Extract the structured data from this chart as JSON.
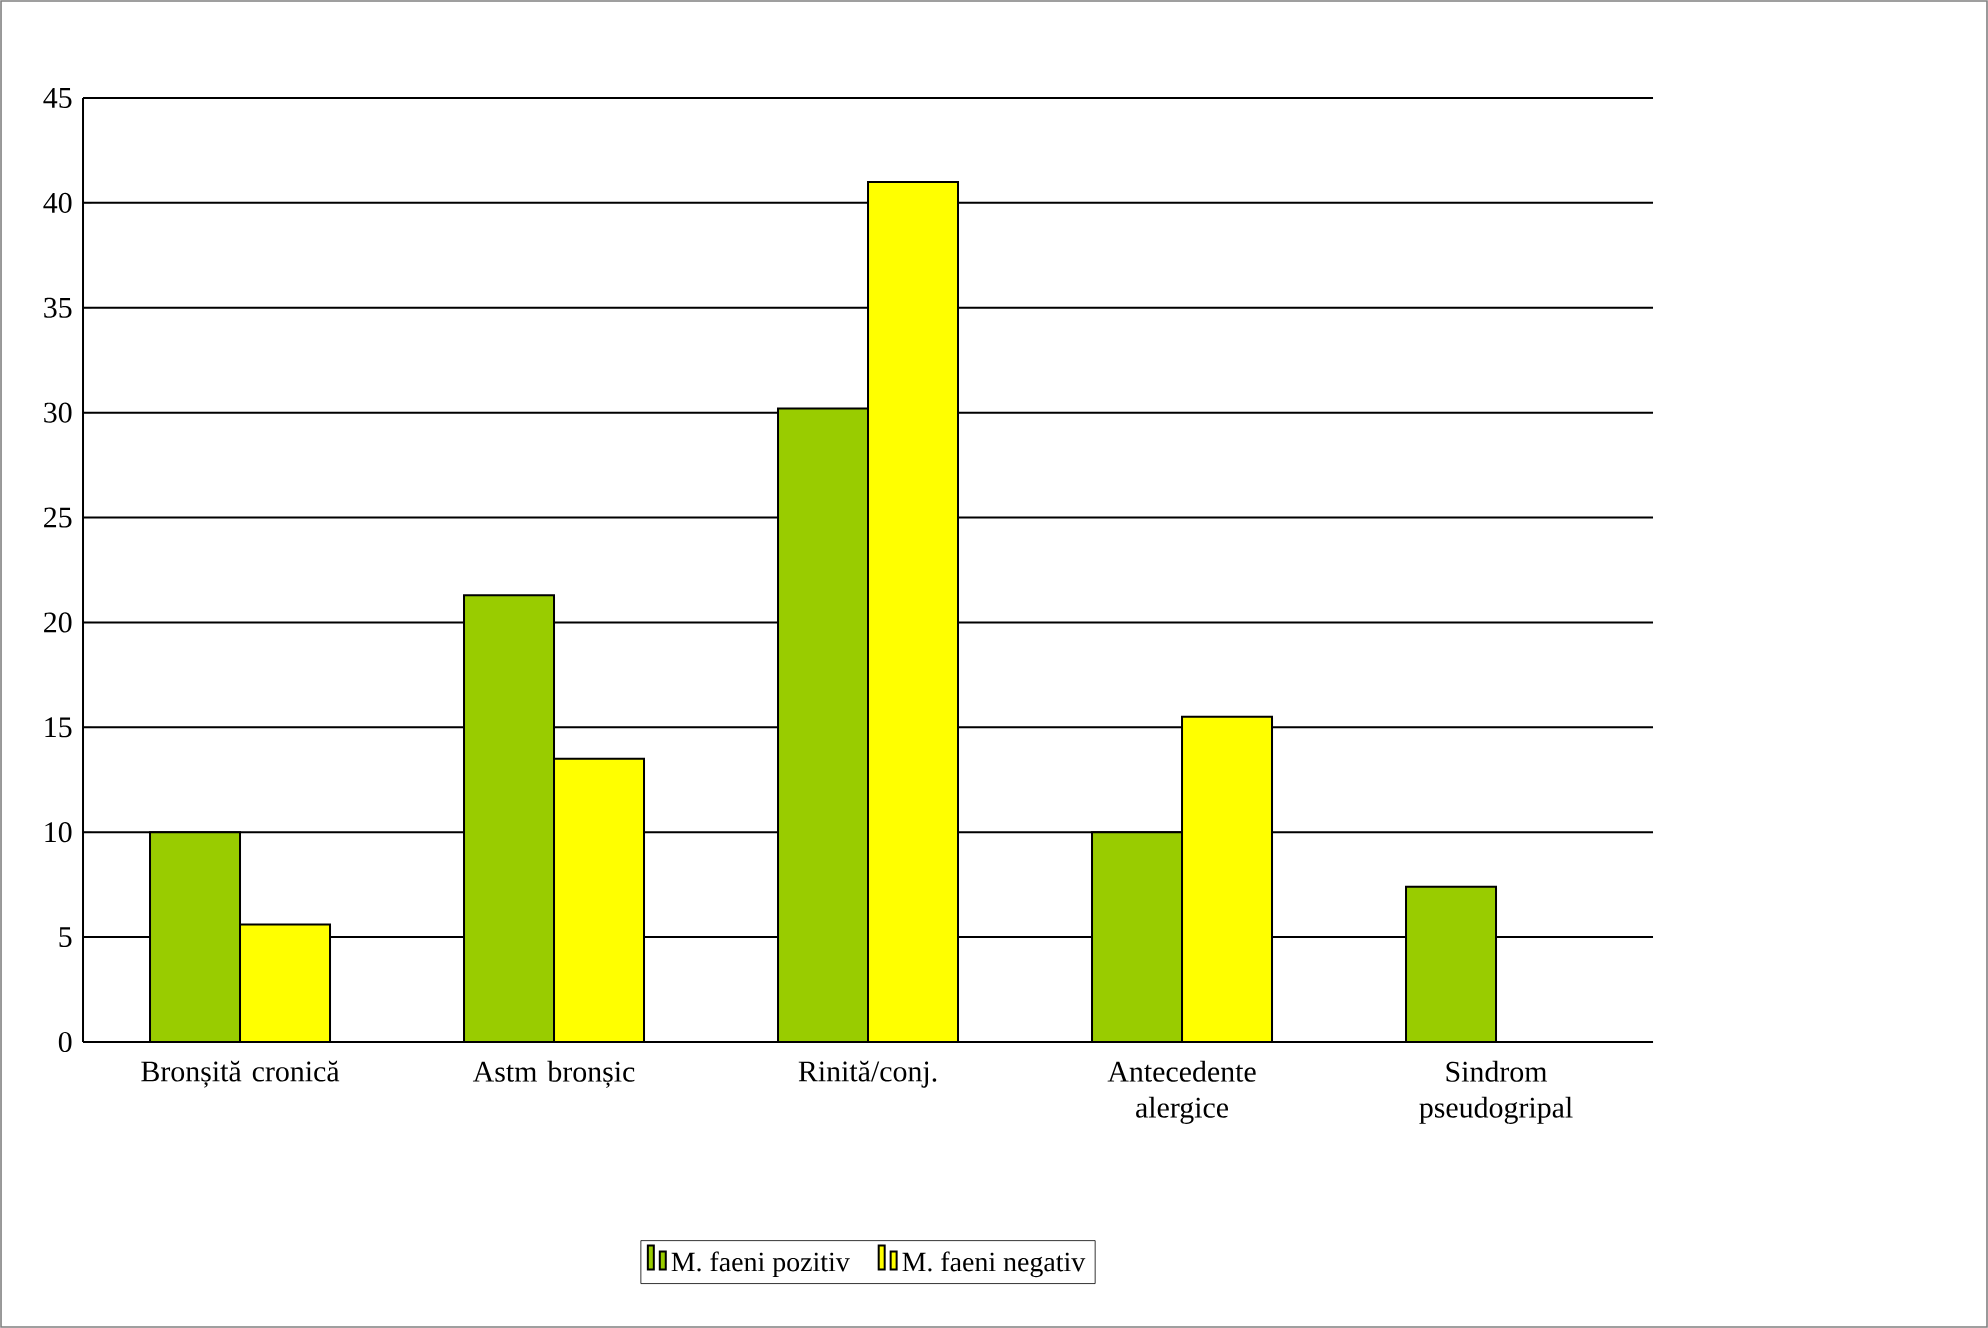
{
  "chart_data": {
    "type": "bar",
    "categories": [
      "Bronșită cronică",
      "Astm bronșic",
      "Rinită/conj.",
      "Antecedente alergice",
      "Sindrom pseudogripal"
    ],
    "series": [
      {
        "name": "M. faeni pozitiv",
        "color": "#99cc00",
        "values": [
          10,
          21.3,
          30.2,
          10,
          7.4
        ]
      },
      {
        "name": "M. faeni negativ",
        "color": "#ffff00",
        "values": [
          5.6,
          13.5,
          41,
          15.5,
          0
        ]
      }
    ],
    "ylim": [
      0,
      45
    ],
    "yticks": [
      0,
      5,
      10,
      15,
      20,
      25,
      30,
      35,
      40,
      45
    ],
    "grid": "y",
    "legend": "bottom"
  }
}
